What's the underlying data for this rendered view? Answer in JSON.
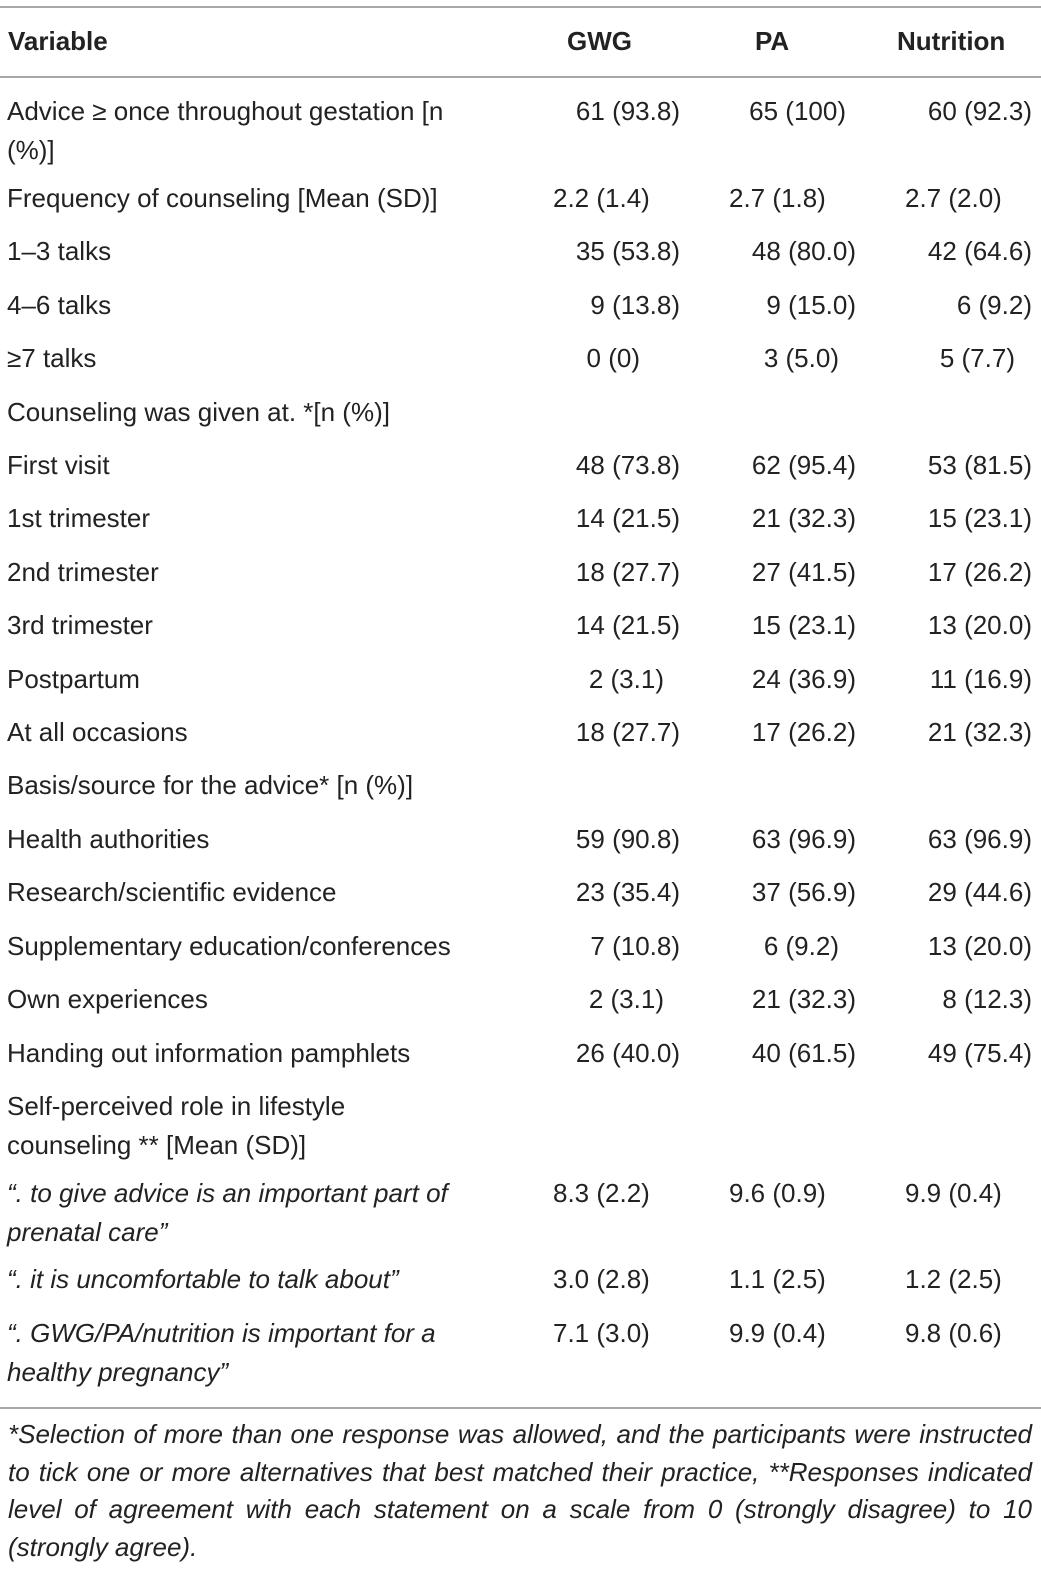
{
  "table": {
    "headers": [
      "Variable",
      "GWG",
      "PA",
      "Nutrition"
    ],
    "rows": [
      {
        "label": "Advice ≥ once throughout gestation [n (%)]",
        "gwg": "61 (93.8)",
        "pa": "65 (100)",
        "nutrition": "60 (92.3)"
      },
      {
        "label": "Frequency of counseling [Mean (SD)]",
        "gwg": "2.2 (1.4)",
        "pa": "2.7 (1.8)",
        "nutrition": "2.7 (2.0)"
      },
      {
        "label": "1–3 talks",
        "gwg": "35 (53.8)",
        "pa": "48 (80.0)",
        "nutrition": "42 (64.6)"
      },
      {
        "label": "4–6 talks",
        "gwg": "9 (13.8)",
        "pa": "9 (15.0)",
        "nutrition": "6 (9.2)"
      },
      {
        "label": "≥7 talks",
        "gwg": "0 (0)",
        "pa": "3 (5.0)",
        "nutrition": "5 (7.7)"
      },
      {
        "label": "Counseling was given at. *[n (%)]",
        "gwg": "",
        "pa": "",
        "nutrition": ""
      },
      {
        "label": "First visit",
        "gwg": "48 (73.8)",
        "pa": "62 (95.4)",
        "nutrition": "53 (81.5)"
      },
      {
        "label": "1st trimester",
        "gwg": "14 (21.5)",
        "pa": "21 (32.3)",
        "nutrition": "15 (23.1)"
      },
      {
        "label": "2nd trimester",
        "gwg": "18 (27.7)",
        "pa": "27 (41.5)",
        "nutrition": "17 (26.2)"
      },
      {
        "label": "3rd trimester",
        "gwg": "14 (21.5)",
        "pa": "15 (23.1)",
        "nutrition": "13 (20.0)"
      },
      {
        "label": "Postpartum",
        "gwg": "2 (3.1)",
        "pa": "24 (36.9)",
        "nutrition": "11 (16.9)"
      },
      {
        "label": "At all occasions",
        "gwg": "18 (27.7)",
        "pa": "17 (26.2)",
        "nutrition": "21 (32.3)"
      },
      {
        "label": "Basis/source for the advice* [n (%)]",
        "gwg": "",
        "pa": "",
        "nutrition": ""
      },
      {
        "label": "Health authorities",
        "gwg": "59 (90.8)",
        "pa": "63 (96.9)",
        "nutrition": "63 (96.9)"
      },
      {
        "label": "Research/scientific evidence",
        "gwg": "23 (35.4)",
        "pa": "37 (56.9)",
        "nutrition": "29 (44.6)"
      },
      {
        "label": "Supplementary education/conferences",
        "gwg": "7 (10.8)",
        "pa": "6 (9.2)",
        "nutrition": "13 (20.0)"
      },
      {
        "label": "Own experiences",
        "gwg": "2 (3.1)",
        "pa": "21 (32.3)",
        "nutrition": "8 (12.3)"
      },
      {
        "label": "Handing out information pamphlets",
        "gwg": "26 (40.0)",
        "pa": "40 (61.5)",
        "nutrition": "49 (75.4)"
      },
      {
        "label": "Self-perceived role in lifestyle counseling ** [Mean (SD)]",
        "gwg": "",
        "pa": "",
        "nutrition": ""
      },
      {
        "label": "“. to give advice is an important part of prenatal care”",
        "gwg": "8.3 (2.2)",
        "pa": "9.6 (0.9)",
        "nutrition": "9.9 (0.4)"
      },
      {
        "label": "“. it is uncomfortable to talk about”",
        "gwg": "3.0 (2.8)",
        "pa": "1.1 (2.5)",
        "nutrition": "1.2 (2.5)"
      },
      {
        "label": "“. GWG/PA/nutrition is important for a healthy pregnancy”",
        "gwg": "7.1 (3.0)",
        "pa": "9.9 (0.4)",
        "nutrition": "9.8 (0.6)"
      }
    ]
  },
  "footnote": "*Selection of more than one response was allowed, and the participants were instructed to tick one or more alternatives that best matched their practice, **Responses indicated level of agreement with each statement on a scale from 0 (strongly disagree) to 10 (strongly agree)."
}
